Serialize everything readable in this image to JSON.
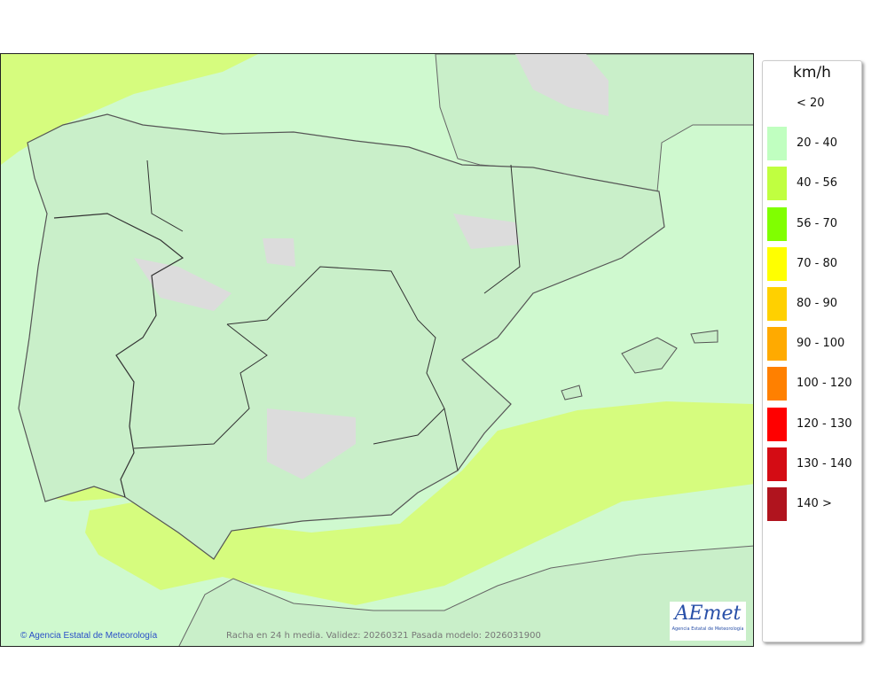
{
  "map": {
    "credit": "Agencia Estatal de Meteorología",
    "caption": "Racha en 24 h media. Validez: 20260321 Pasada modelo: 2026031900",
    "logo_text": "AEmet",
    "logo_subtitle": "Agencia Estatal de Meteorología",
    "colors": {
      "sea": "#cff9cf",
      "land": "#c9efc9",
      "band_40_56": "#d6fc7e",
      "no_data": "#dcdcdc"
    }
  },
  "legend": {
    "unit": "km/h",
    "items": [
      {
        "label": "< 20",
        "color": ""
      },
      {
        "label": "20 - 40",
        "color": "#c0ffc0"
      },
      {
        "label": "40 - 56",
        "color": "#c0ff40"
      },
      {
        "label": "56 - 70",
        "color": "#80ff00"
      },
      {
        "label": "70 - 80",
        "color": "#ffff00"
      },
      {
        "label": "80 - 90",
        "color": "#ffd000"
      },
      {
        "label": "90 - 100",
        "color": "#ffaa00"
      },
      {
        "label": "100 - 120",
        "color": "#ff8000"
      },
      {
        "label": "120 - 130",
        "color": "#ff0000"
      },
      {
        "label": "130 - 140",
        "color": "#d40c14"
      },
      {
        "label": "140 >",
        "color": "#b0141e"
      }
    ]
  }
}
